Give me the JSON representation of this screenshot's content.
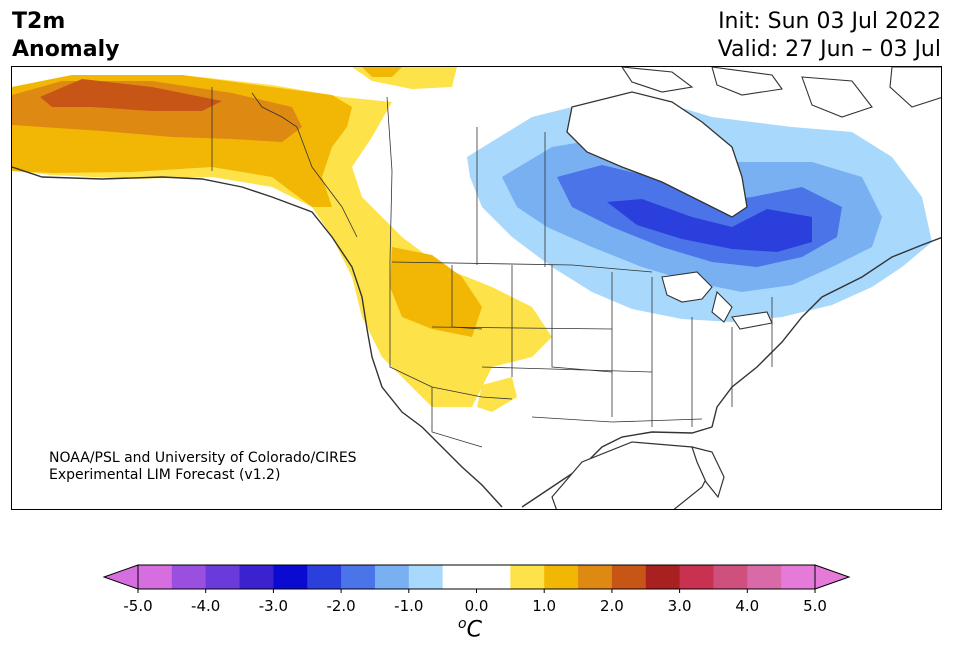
{
  "header": {
    "variable": "T2m",
    "field": "Anomaly",
    "init": "Init: Sun 03 Jul 2022",
    "valid": "Valid: 27 Jun – 03 Jul"
  },
  "credit": {
    "line1": "NOAA/PSL and University of Colorado/CIRES",
    "line2": "Experimental LIM Forecast (v1.2)"
  },
  "colorbar": {
    "ticks": [
      "-5.0",
      "-4.0",
      "-3.0",
      "-2.0",
      "-1.0",
      "0.0",
      "1.0",
      "2.0",
      "3.0",
      "4.0",
      "5.0"
    ],
    "unit": "C",
    "unit_sup": "o",
    "colors": [
      "#d66ee0",
      "#9a4fde",
      "#6b3adb",
      "#3a22cf",
      "#0a0ad0",
      "#2a3fdc",
      "#4a74e8",
      "#78b0f2",
      "#a8d8fb",
      "#ffffff",
      "#ffffff",
      "#fde24a",
      "#f2b705",
      "#de8912",
      "#c75516",
      "#a82020",
      "#c83250",
      "#cf4f7d",
      "#d86aa8",
      "#e67ad8"
    ]
  }
}
